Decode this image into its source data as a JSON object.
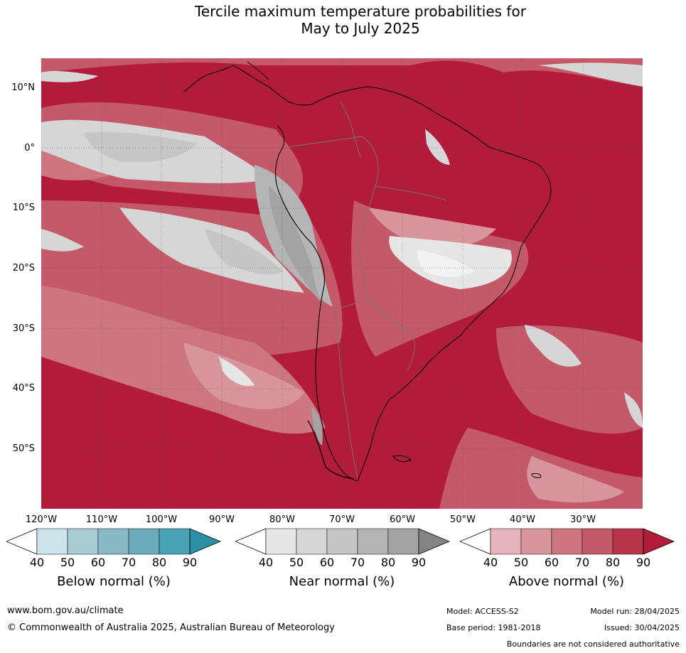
{
  "title": {
    "line1": "Tercile maximum temperature probabilities for",
    "line2": "May to July 2025"
  },
  "map": {
    "lat_labels": [
      "10°N",
      "0°",
      "10°S",
      "20°S",
      "30°S",
      "40°S",
      "50°S"
    ],
    "lon_labels": [
      "120°W",
      "110°W",
      "100°W",
      "90°W",
      "80°W",
      "70°W",
      "60°W",
      "50°W",
      "40°W",
      "30°W"
    ],
    "gridlines": true,
    "dominant_category": "Above normal"
  },
  "colorbars": [
    {
      "label": "Below normal (%)",
      "ticks": [
        "40",
        "50",
        "60",
        "70",
        "80",
        "90"
      ],
      "colors": [
        "#ffffff",
        "#cce3ea",
        "#a8cbd4",
        "#8ab9c6",
        "#6bacbc",
        "#4aa3b4",
        "#2d8fa5"
      ]
    },
    {
      "label": "Near normal (%)",
      "ticks": [
        "40",
        "50",
        "60",
        "70",
        "80",
        "90"
      ],
      "colors": [
        "#ffffff",
        "#e6e6e6",
        "#d6d6d6",
        "#c6c6c6",
        "#b5b5b5",
        "#a3a3a3",
        "#838383"
      ]
    },
    {
      "label": "Above normal (%)",
      "ticks": [
        "40",
        "50",
        "60",
        "70",
        "80",
        "90"
      ],
      "colors": [
        "#ffffff",
        "#e3b5bb",
        "#d9959e",
        "#cd7581",
        "#c45a69",
        "#b8344b",
        "#b21c3a"
      ]
    }
  ],
  "footer": {
    "website": "www.bom.gov.au/climate",
    "copyright": "© Commonwealth of Australia 2025, Australian Bureau of Meteorology",
    "model": "Model: ACCESS-S2",
    "model_run": "Model run: 28/04/2025",
    "base_period": "Base period: 1981-2018",
    "issued": "Issued: 30/04/2025",
    "disclaimer": "Boundaries are not considered authoritative"
  }
}
